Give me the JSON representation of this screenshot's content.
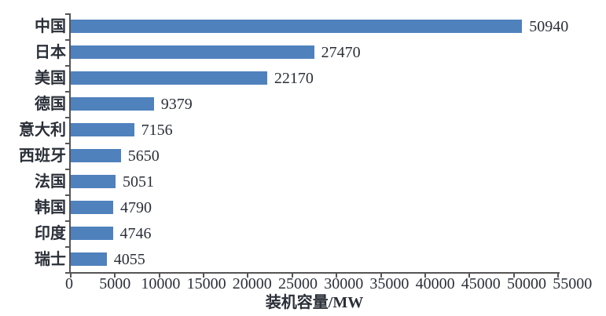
{
  "chart_data": {
    "type": "bar",
    "orientation": "horizontal",
    "title": "",
    "categories": [
      "中国",
      "日本",
      "美国",
      "德国",
      "意大利",
      "西班牙",
      "法国",
      "韩国",
      "印度",
      "瑞士"
    ],
    "values": [
      50940,
      27470,
      22170,
      9379,
      7156,
      5650,
      5051,
      4790,
      4746,
      4055
    ],
    "value_labels": [
      "50940",
      "27470",
      "22170",
      "9379",
      "7156",
      "5650",
      "5051",
      "4790",
      "4746",
      "4055"
    ],
    "xlabel": "装机容量/MW",
    "ylabel": "",
    "xlim": [
      0,
      55000
    ],
    "xtick_step": 5000,
    "xticks": [
      0,
      5000,
      10000,
      15000,
      20000,
      25000,
      30000,
      35000,
      40000,
      45000,
      50000,
      55000
    ],
    "xtick_labels": [
      "0",
      "5000",
      "10000",
      "15000",
      "20000",
      "25000",
      "30000",
      "35000",
      "40000",
      "45000",
      "50000",
      "55000"
    ],
    "grid": false,
    "legend": false,
    "value_labels_shown": true
  },
  "colors": {
    "bar": "#4F81BD",
    "axis": "#555555",
    "text": "#2a2f38",
    "background": "#ffffff"
  }
}
